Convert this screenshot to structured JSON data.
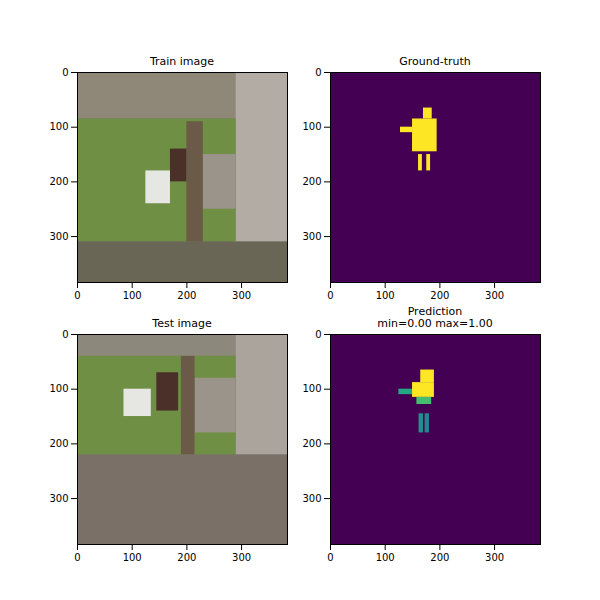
{
  "chart_data": [
    {
      "type": "image",
      "title": "Train image",
      "xlim": [
        0,
        384
      ],
      "ylim": [
        384,
        0
      ],
      "xticks": [
        0,
        100,
        200,
        300
      ],
      "yticks": [
        0,
        100,
        200,
        300
      ],
      "regions": [
        {
          "x1": 0,
          "x2": 384,
          "y1": 0,
          "y2": 384,
          "color": "#7d7a6a"
        },
        {
          "x1": 0,
          "x2": 290,
          "y1": 0,
          "y2": 85,
          "color": "#8f8878"
        },
        {
          "x1": 290,
          "x2": 384,
          "y1": 0,
          "y2": 310,
          "color": "#b2aca4"
        },
        {
          "x1": 0,
          "x2": 290,
          "y1": 85,
          "y2": 310,
          "color": "#6f8f45"
        },
        {
          "x1": 230,
          "x2": 290,
          "y1": 150,
          "y2": 250,
          "color": "#9a948a"
        },
        {
          "x1": 0,
          "x2": 384,
          "y1": 310,
          "y2": 384,
          "color": "#6a6656"
        },
        {
          "x1": 200,
          "x2": 230,
          "y1": 90,
          "y2": 310,
          "color": "#6b5a48"
        },
        {
          "x1": 170,
          "x2": 200,
          "y1": 140,
          "y2": 200,
          "color": "#4a3028"
        },
        {
          "x1": 125,
          "x2": 170,
          "y1": 180,
          "y2": 240,
          "color": "#e6e6e2"
        }
      ]
    },
    {
      "type": "heatmap",
      "title": "Ground-truth",
      "xlim": [
        0,
        384
      ],
      "ylim": [
        384,
        0
      ],
      "xticks": [
        0,
        100,
        200,
        300
      ],
      "yticks": [
        0,
        100,
        200,
        300
      ],
      "clim": [
        0,
        1
      ],
      "cells": [
        {
          "x1": 0,
          "x2": 384,
          "y1": 0,
          "y2": 384,
          "value": 0
        },
        {
          "x1": 170,
          "x2": 186,
          "y1": 65,
          "y2": 85,
          "value": 1
        },
        {
          "x1": 150,
          "x2": 195,
          "y1": 85,
          "y2": 145,
          "value": 1
        },
        {
          "x1": 128,
          "x2": 150,
          "y1": 100,
          "y2": 110,
          "value": 1
        },
        {
          "x1": 161,
          "x2": 168,
          "y1": 150,
          "y2": 180,
          "value": 1
        },
        {
          "x1": 176,
          "x2": 183,
          "y1": 150,
          "y2": 180,
          "value": 1
        }
      ]
    },
    {
      "type": "image",
      "title": "Test image",
      "xlim": [
        0,
        384
      ],
      "ylim": [
        384,
        0
      ],
      "xticks": [
        0,
        100,
        200,
        300
      ],
      "yticks": [
        0,
        100,
        200,
        300
      ],
      "regions": [
        {
          "x1": 0,
          "x2": 384,
          "y1": 0,
          "y2": 384,
          "color": "#7a7068"
        },
        {
          "x1": 0,
          "x2": 290,
          "y1": 0,
          "y2": 40,
          "color": "#8c887c"
        },
        {
          "x1": 290,
          "x2": 384,
          "y1": 0,
          "y2": 220,
          "color": "#aaa49c"
        },
        {
          "x1": 0,
          "x2": 290,
          "y1": 40,
          "y2": 220,
          "color": "#6f8f45"
        },
        {
          "x1": 215,
          "x2": 290,
          "y1": 80,
          "y2": 180,
          "color": "#9a948a"
        },
        {
          "x1": 190,
          "x2": 215,
          "y1": 40,
          "y2": 220,
          "color": "#6b5a48"
        },
        {
          "x1": 145,
          "x2": 185,
          "y1": 70,
          "y2": 140,
          "color": "#4a3028"
        },
        {
          "x1": 85,
          "x2": 135,
          "y1": 100,
          "y2": 150,
          "color": "#e6e6e2"
        }
      ]
    },
    {
      "type": "heatmap",
      "title": "Prediction\nmin=0.00 max=1.00",
      "xlim": [
        0,
        384
      ],
      "ylim": [
        384,
        0
      ],
      "xticks": [
        0,
        100,
        200,
        300
      ],
      "yticks": [
        0,
        100,
        200,
        300
      ],
      "clim": [
        0,
        1
      ],
      "cells": [
        {
          "x1": 0,
          "x2": 384,
          "y1": 0,
          "y2": 384,
          "value": 0
        },
        {
          "x1": 165,
          "x2": 190,
          "y1": 65,
          "y2": 88,
          "value": 1
        },
        {
          "x1": 150,
          "x2": 190,
          "y1": 88,
          "y2": 115,
          "value": 1
        },
        {
          "x1": 125,
          "x2": 150,
          "y1": 100,
          "y2": 110,
          "value": 0.6
        },
        {
          "x1": 158,
          "x2": 185,
          "y1": 115,
          "y2": 128,
          "value": 0.7
        },
        {
          "x1": 162,
          "x2": 170,
          "y1": 145,
          "y2": 180,
          "value": 0.5
        },
        {
          "x1": 173,
          "x2": 181,
          "y1": 145,
          "y2": 180,
          "value": 0.45
        }
      ]
    }
  ]
}
